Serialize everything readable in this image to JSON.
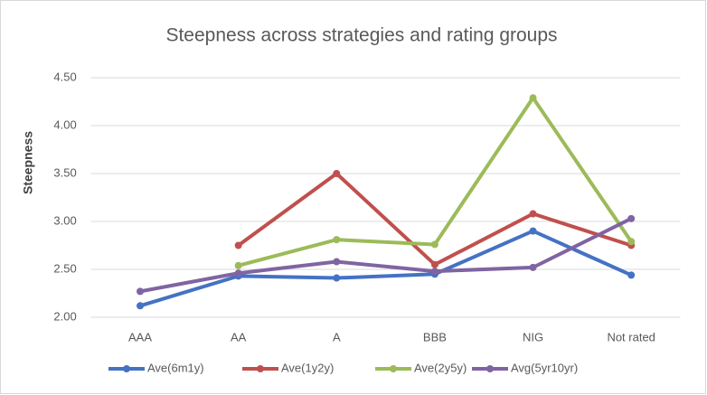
{
  "chart_data": {
    "type": "line",
    "title": "Steepness across strategies and rating groups",
    "y_label": "Steepness",
    "categories": [
      "AAA",
      "AA",
      "A",
      "BBB",
      "NIG",
      "Not rated"
    ],
    "series": [
      {
        "name": "Ave(6m1y)",
        "color": "#4472c4",
        "values": [
          2.12,
          2.43,
          2.41,
          2.45,
          2.9,
          2.44
        ]
      },
      {
        "name": "Ave(1y2y)",
        "color": "#c0504d",
        "values": [
          null,
          2.75,
          3.5,
          2.55,
          3.08,
          2.75
        ]
      },
      {
        "name": "Ave(2y5y)",
        "color": "#9bbb59",
        "values": [
          null,
          2.54,
          2.81,
          2.76,
          4.29,
          2.79
        ]
      },
      {
        "name": "Avg(5yr10yr)",
        "color": "#8064a2",
        "values": [
          2.27,
          2.46,
          2.58,
          2.48,
          2.52,
          3.03
        ]
      }
    ],
    "ylim": [
      2,
      4.5
    ],
    "yticks": [
      {
        "value": 2,
        "label": "2.00"
      },
      {
        "value": 2.5,
        "label": "2.50"
      },
      {
        "value": 3,
        "label": "3.00"
      },
      {
        "value": 3.5,
        "label": "3.50"
      },
      {
        "value": 4,
        "label": "4.00"
      },
      {
        "value": 4.5,
        "label": "4.50"
      }
    ],
    "grid": true,
    "legend": "bottom"
  }
}
